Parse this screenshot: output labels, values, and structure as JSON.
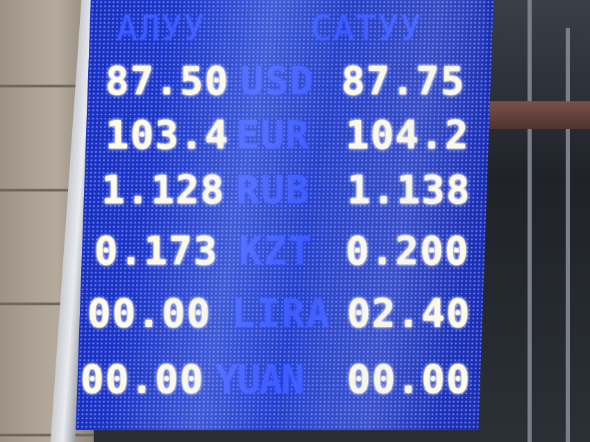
{
  "board": {
    "headers": {
      "buy": "АЛУУ",
      "sell": "САТУУ"
    },
    "rates": [
      {
        "buy": "87.50",
        "currency": "USD",
        "sell": "87.75"
      },
      {
        "buy": "103.4",
        "currency": "EUR",
        "sell": "104.2"
      },
      {
        "buy": "1.128",
        "currency": "RUB",
        "sell": "1.138"
      },
      {
        "buy": "0.173",
        "currency": "KZT",
        "sell": "0.200"
      },
      {
        "buy": "00.00",
        "currency": "LIRA",
        "sell": "02.40"
      },
      {
        "buy": "00.00",
        "currency": "YUAN",
        "sell": "00.00"
      }
    ],
    "colors": {
      "panel": "#1f3fd0",
      "digits": "#fffbe8",
      "currency": "#3e5cff"
    }
  }
}
